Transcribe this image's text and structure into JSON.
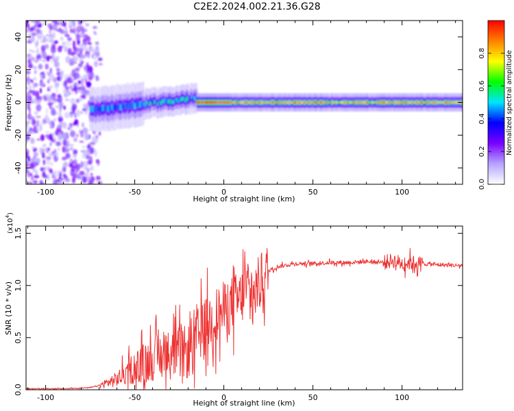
{
  "title": "C2E2.2024.002.21.36.G28",
  "chart_data": [
    {
      "type": "heatmap",
      "xlabel": "Height of straight line (km)",
      "ylabel": "Frequency (Hz)",
      "xlim": [
        -111,
        134
      ],
      "ylim": [
        -50,
        50
      ],
      "x_ticks": [
        -100,
        -50,
        0,
        50,
        100
      ],
      "x_tick_labels": [
        "-100",
        "-50",
        "0",
        "50",
        "100"
      ],
      "y_ticks": [
        -40,
        -20,
        0,
        20,
        40
      ],
      "y_tick_labels": [
        "-40",
        "-20",
        "0",
        "20",
        "40"
      ],
      "colorbar": {
        "label": "Normalized spectral amplitude",
        "range": [
          0,
          1
        ],
        "ticks": [
          0.0,
          0.2,
          0.4,
          0.6,
          0.8
        ],
        "tick_labels": [
          "0.0",
          "0.2",
          "0.4",
          "0.6",
          "0.8"
        ],
        "colors": [
          "#ffffff",
          "#b6a3ff",
          "#7a00ff",
          "#0000ff",
          "#00e5ff",
          "#00ff00",
          "#ffff00",
          "#ff8000",
          "#ff0000"
        ]
      },
      "features": {
        "noise_region_x": [
          -111,
          -68
        ],
        "signal_line_frequency": 0,
        "line_peak_amplitude": 1.0
      }
    },
    {
      "type": "line",
      "xlabel": "Height of straight line (km)",
      "ylabel": "SNR (10 * v/v)",
      "y_multiplier": "(x10",
      "y_multiplier_exp": "4",
      "y_multiplier_close": ")",
      "xlim": [
        -111,
        134
      ],
      "ylim": [
        0,
        1.57
      ],
      "x_ticks": [
        -100,
        -50,
        0,
        50,
        100
      ],
      "x_tick_labels": [
        "-100",
        "-50",
        "0",
        "50",
        "100"
      ],
      "y_ticks": [
        0.0,
        0.5,
        1.0,
        1.5
      ],
      "y_tick_labels": [
        "0.0",
        "0.5",
        "1.0",
        "1.5"
      ],
      "series": [
        {
          "name": "SNR",
          "color": "#ee3333",
          "x": [
            -111,
            -90,
            -75,
            -70,
            -60,
            -50,
            -40,
            -30,
            -20,
            -15,
            -10,
            -5,
            0,
            5,
            10,
            12,
            15,
            20,
            25,
            30,
            40,
            50,
            60,
            70,
            80,
            90,
            95,
            100,
            105,
            110,
            120,
            134
          ],
          "y": [
            0.01,
            0.01,
            0.02,
            0.04,
            0.1,
            0.22,
            0.3,
            0.34,
            0.36,
            0.5,
            0.62,
            0.7,
            0.76,
            0.82,
            0.88,
            1.0,
            0.85,
            1.02,
            1.14,
            1.18,
            1.21,
            1.21,
            1.22,
            1.22,
            1.23,
            1.22,
            1.24,
            1.21,
            1.22,
            1.21,
            1.2,
            1.19
          ]
        }
      ]
    }
  ]
}
